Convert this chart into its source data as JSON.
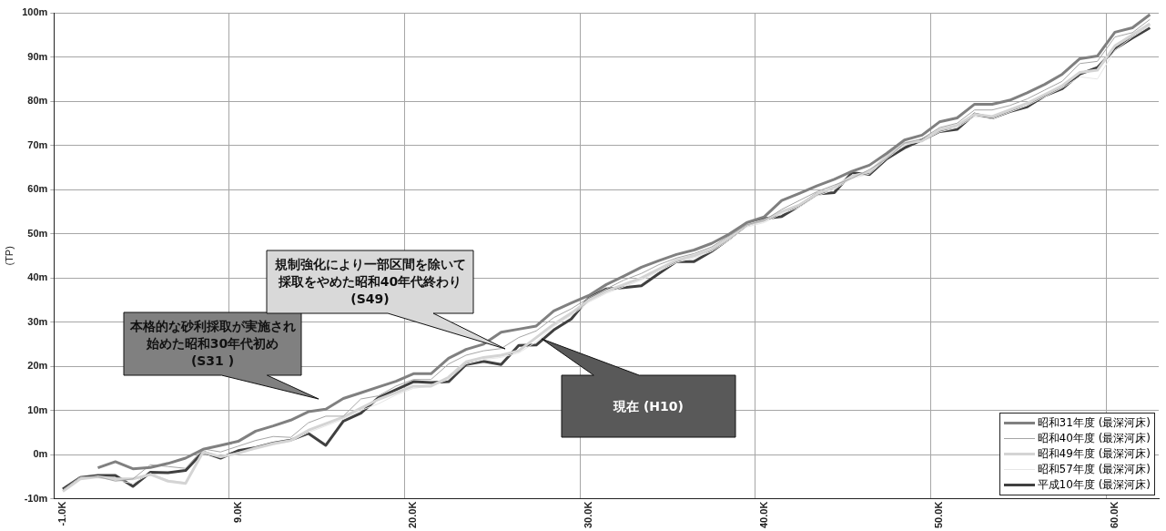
{
  "chart_data": {
    "type": "line",
    "ylabel": "(TP)",
    "categories": [
      "-1.0K",
      null,
      null,
      null,
      null,
      null,
      null,
      null,
      null,
      null,
      "9.0K",
      null,
      null,
      null,
      null,
      null,
      null,
      null,
      null,
      null,
      "20.0K",
      null,
      null,
      null,
      null,
      null,
      null,
      null,
      null,
      null,
      "30.0K",
      null,
      null,
      null,
      null,
      null,
      null,
      null,
      null,
      null,
      "40.0K",
      null,
      null,
      null,
      null,
      null,
      null,
      null,
      null,
      null,
      "50.0K",
      null,
      null,
      null,
      null,
      null,
      null,
      null,
      null,
      null,
      "60.0K",
      null,
      null
    ],
    "series": [
      {
        "name": "昭和31年度 (最深河床)",
        "color": "#808080",
        "values": [
          null,
          null,
          -3.0,
          -1.6,
          -3.2,
          -2.9,
          -2.0,
          -0.8,
          1.2,
          2.1,
          3.0,
          5.3,
          6.5,
          7.8,
          9.7,
          10.3,
          12.7,
          14.0,
          15.3,
          16.6,
          18.3,
          18.3,
          21.8,
          23.8,
          25.0,
          27.7,
          28.4,
          29.1,
          32.5,
          34.3,
          36.0,
          38.5,
          40.4,
          42.4,
          43.9,
          45.3,
          46.3,
          47.8,
          49.9,
          52.5,
          53.8,
          57.5,
          59.1,
          60.8,
          62.3,
          64.1,
          65.5,
          68.2,
          71.2,
          72.3,
          75.3,
          76.2,
          79.3,
          79.3,
          80.2,
          81.9,
          83.8,
          86.1,
          89.6,
          90.2,
          95.6,
          96.6,
          99.6
        ]
      },
      {
        "name": "昭和40年度 (最深河床)",
        "color": "#a6a6a6",
        "values": [
          -8.0,
          -5.0,
          -5.0,
          -6.0,
          -5.5,
          -2.3,
          -2.7,
          -3.1,
          1.3,
          0.6,
          1.9,
          3.2,
          4.1,
          3.9,
          7.2,
          8.7,
          8.7,
          12.6,
          13.3,
          15.5,
          17.0,
          17.0,
          20.5,
          22.5,
          23.5,
          24.0,
          26.5,
          28.0,
          31.0,
          33.0,
          35.5,
          37.5,
          39.5,
          41.0,
          43.0,
          44.5,
          45.5,
          47.0,
          49.5,
          52.0,
          53.0,
          55.5,
          57.5,
          59.5,
          61.0,
          62.5,
          64.5,
          67.0,
          70.5,
          71.5,
          74.0,
          75.0,
          78.0,
          78.0,
          79.0,
          80.5,
          82.5,
          84.5,
          88.5,
          89.0,
          94.5,
          95.5,
          98.5
        ]
      },
      {
        "name": "昭和49年度 (最深河床)",
        "color": "#d4d4d4",
        "values": [
          -8.3,
          -5.5,
          -5.0,
          -5.5,
          -5.5,
          -4.5,
          -6.0,
          -6.5,
          0.6,
          -0.5,
          0.3,
          1.5,
          2.5,
          3.2,
          5.5,
          7.0,
          8.5,
          10.5,
          12.5,
          14.0,
          15.5,
          15.5,
          17.5,
          21.0,
          22.0,
          22.5,
          23.5,
          26.5,
          29.5,
          32.0,
          35.0,
          37.0,
          38.5,
          40.0,
          42.0,
          44.0,
          45.0,
          46.5,
          49.0,
          52.0,
          53.0,
          55.0,
          56.5,
          59.0,
          60.5,
          63.0,
          64.0,
          67.5,
          70.5,
          71.0,
          73.5,
          74.5,
          77.0,
          76.5,
          78.0,
          79.5,
          81.5,
          83.5,
          86.5,
          87.0,
          92.5,
          95.0,
          97.5
        ]
      },
      {
        "name": "昭和57年度 (最深河床)",
        "color": "#e6e6e6",
        "values": [
          -8.2,
          -5.3,
          -5.2,
          -5.8,
          -6.5,
          -4.3,
          -5.8,
          -6.3,
          0.4,
          -0.6,
          0.5,
          1.2,
          2.2,
          3.0,
          5.0,
          6.5,
          8.0,
          10.0,
          11.5,
          13.5,
          15.0,
          15.5,
          17.0,
          20.5,
          21.5,
          22.0,
          23.0,
          25.5,
          29.0,
          31.5,
          34.5,
          36.5,
          38.0,
          39.5,
          41.5,
          43.5,
          44.5,
          46.0,
          48.5,
          51.5,
          52.5,
          54.5,
          56.0,
          58.5,
          60.0,
          62.5,
          63.5,
          67.0,
          70.0,
          71.0,
          73.0,
          74.0,
          76.5,
          76.0,
          77.5,
          79.0,
          81.0,
          83.0,
          85.5,
          85.0,
          91.5,
          94.5,
          97.0
        ]
      },
      {
        "name": "平成10年度 (最深河床)",
        "color": "#404040",
        "values": [
          -7.8,
          -5.2,
          -4.7,
          -4.7,
          -7.2,
          -4.0,
          -4.1,
          -3.6,
          0.6,
          -0.8,
          0.9,
          1.6,
          2.6,
          3.3,
          4.8,
          2.1,
          7.6,
          9.4,
          12.9,
          14.7,
          16.5,
          16.3,
          16.5,
          20.4,
          21.1,
          20.4,
          24.7,
          24.8,
          28.2,
          30.7,
          35.5,
          37.5,
          37.8,
          38.2,
          41.0,
          43.7,
          43.7,
          46.0,
          48.8,
          52.0,
          53.4,
          53.9,
          56.3,
          59.0,
          59.3,
          63.8,
          63.4,
          67.0,
          69.4,
          71.2,
          73.1,
          73.6,
          77.1,
          76.2,
          77.6,
          78.7,
          81.2,
          82.8,
          86.1,
          87.6,
          91.8,
          94.3,
          96.6
        ]
      }
    ],
    "ylim": [
      -10,
      100
    ],
    "yticks": [
      {
        "value": -10,
        "label": "-10m"
      },
      {
        "value": 0,
        "label": "0m"
      },
      {
        "value": 10,
        "label": "10m"
      },
      {
        "value": 20,
        "label": "20m"
      },
      {
        "value": 30,
        "label": "30m"
      },
      {
        "value": 40,
        "label": "40m"
      },
      {
        "value": 50,
        "label": "50m"
      },
      {
        "value": 60,
        "label": "60m"
      },
      {
        "value": 70,
        "label": "70m"
      },
      {
        "value": 80,
        "label": "80m"
      },
      {
        "value": 90,
        "label": "90m"
      },
      {
        "value": 100,
        "label": "100m"
      }
    ],
    "grid": true,
    "legend": "bottom right",
    "marker": "none",
    "annotations": [
      "本格的な砂利採取が実施され始めた昭和30年代初め (S31 )",
      "規制強化により一部区間を除いて採取をやめた昭和40年代終わり (S49)",
      "現在 (H10)"
    ]
  }
}
